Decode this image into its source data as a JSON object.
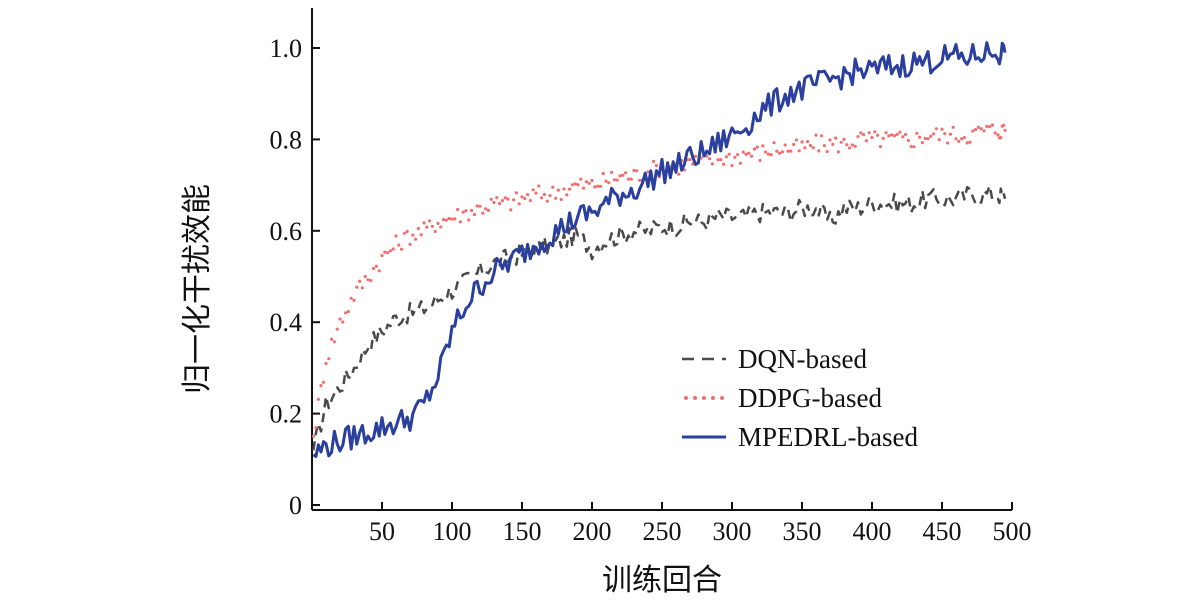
{
  "chart_data": {
    "type": "line",
    "xlabel": "训练回合",
    "ylabel": "归一化干扰效能",
    "xlim": [
      0,
      500
    ],
    "ylim": [
      0,
      1.08
    ],
    "xticks": [
      50,
      100,
      150,
      200,
      250,
      300,
      350,
      400,
      450,
      500
    ],
    "yticks": [
      0,
      0.2,
      0.4,
      0.6,
      0.8,
      1.0
    ],
    "xtick_labels": [
      "50",
      "100",
      "150",
      "200",
      "250",
      "300",
      "350",
      "400",
      "450",
      "500"
    ],
    "ytick_labels": [
      "0",
      "0.2",
      "0.4",
      "0.6",
      "0.8",
      "1.0"
    ],
    "grid": false,
    "legend_position": "lower-right",
    "series": [
      {
        "name": "DQN-based",
        "style": "dashed",
        "color": "#4a4a4a",
        "x": [
          1,
          10,
          20,
          30,
          40,
          50,
          60,
          70,
          80,
          90,
          100,
          110,
          120,
          130,
          140,
          150,
          160,
          170,
          180,
          190,
          200,
          210,
          220,
          230,
          240,
          250,
          260,
          270,
          280,
          290,
          300,
          310,
          320,
          330,
          340,
          350,
          360,
          370,
          380,
          390,
          400,
          410,
          420,
          430,
          440,
          450,
          460,
          470,
          480,
          490,
          495
        ],
        "y": [
          0.12,
          0.22,
          0.26,
          0.3,
          0.35,
          0.38,
          0.41,
          0.42,
          0.43,
          0.45,
          0.47,
          0.49,
          0.51,
          0.53,
          0.54,
          0.55,
          0.56,
          0.57,
          0.58,
          0.59,
          0.56,
          0.58,
          0.59,
          0.6,
          0.6,
          0.61,
          0.61,
          0.62,
          0.62,
          0.63,
          0.63,
          0.63,
          0.64,
          0.64,
          0.64,
          0.65,
          0.65,
          0.62,
          0.65,
          0.65,
          0.66,
          0.66,
          0.66,
          0.66,
          0.67,
          0.67,
          0.67,
          0.68,
          0.68,
          0.68,
          0.67
        ]
      },
      {
        "name": "DDPG-based",
        "style": "dotted",
        "color": "#f07070",
        "x": [
          1,
          10,
          20,
          30,
          40,
          50,
          60,
          70,
          80,
          90,
          100,
          110,
          120,
          130,
          140,
          150,
          160,
          170,
          180,
          190,
          200,
          210,
          220,
          230,
          240,
          250,
          260,
          270,
          280,
          290,
          300,
          310,
          320,
          330,
          340,
          350,
          360,
          370,
          380,
          390,
          400,
          410,
          420,
          430,
          440,
          450,
          460,
          470,
          480,
          490,
          495
        ],
        "y": [
          0.15,
          0.32,
          0.4,
          0.46,
          0.5,
          0.54,
          0.57,
          0.59,
          0.6,
          0.62,
          0.63,
          0.64,
          0.65,
          0.66,
          0.66,
          0.67,
          0.68,
          0.68,
          0.69,
          0.7,
          0.7,
          0.71,
          0.72,
          0.72,
          0.73,
          0.74,
          0.74,
          0.75,
          0.75,
          0.76,
          0.76,
          0.77,
          0.77,
          0.78,
          0.78,
          0.78,
          0.79,
          0.79,
          0.79,
          0.8,
          0.8,
          0.8,
          0.8,
          0.8,
          0.81,
          0.81,
          0.81,
          0.81,
          0.82,
          0.82,
          0.82
        ]
      },
      {
        "name": "MPEDRL-based",
        "style": "solid",
        "color": "#2a3f9e",
        "x": [
          1,
          10,
          20,
          30,
          40,
          50,
          60,
          70,
          80,
          90,
          100,
          110,
          120,
          130,
          140,
          150,
          160,
          170,
          180,
          190,
          200,
          210,
          220,
          230,
          240,
          250,
          260,
          270,
          280,
          290,
          300,
          310,
          320,
          330,
          340,
          350,
          360,
          370,
          380,
          390,
          400,
          410,
          420,
          430,
          440,
          450,
          460,
          470,
          480,
          490,
          495
        ],
        "y": [
          0.11,
          0.13,
          0.14,
          0.15,
          0.16,
          0.17,
          0.18,
          0.19,
          0.22,
          0.28,
          0.38,
          0.44,
          0.48,
          0.51,
          0.53,
          0.55,
          0.57,
          0.59,
          0.61,
          0.63,
          0.64,
          0.66,
          0.68,
          0.69,
          0.71,
          0.73,
          0.74,
          0.76,
          0.77,
          0.79,
          0.81,
          0.83,
          0.86,
          0.88,
          0.9,
          0.91,
          0.92,
          0.93,
          0.94,
          0.95,
          0.95,
          0.96,
          0.96,
          0.97,
          0.97,
          0.98,
          0.98,
          0.98,
          0.99,
          0.99,
          0.99
        ]
      }
    ]
  }
}
